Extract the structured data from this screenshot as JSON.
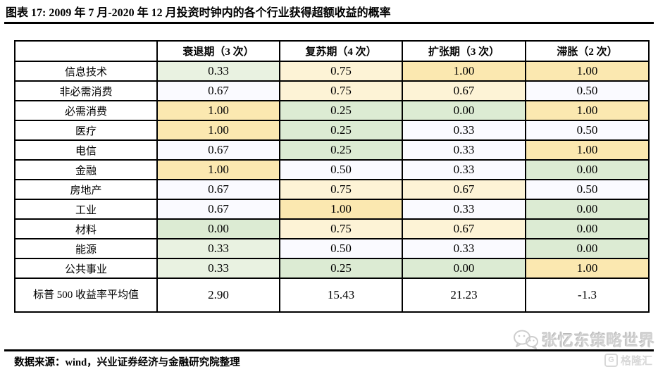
{
  "title": "图表 17:  2009 年 7 月-2020 年 12 月投资时钟内的各个行业获得超额收益的概率",
  "source": "数据来源：wind，兴业证券经济与金融研究院整理",
  "watermark": {
    "text": "张忆东策略世界",
    "logo_text": "格隆汇",
    "logo_letter": "G"
  },
  "palette": {
    "green": "#DCEBD3",
    "green_light": "#E9F2E1",
    "neutral": "#FAFAFF",
    "cream": "#FDF3D6",
    "orange": "#FBE8B0",
    "white": "#FFFFFF",
    "border": "#000000",
    "watermark_gray": "#D2D2D2"
  },
  "table": {
    "corner_label": "",
    "columns": [
      "衰退期（3 次）",
      "复苏期（4 次）",
      "扩张期（3 次）",
      "滞胀（2 次）"
    ],
    "rows": [
      {
        "label": "信息技术",
        "values": [
          "0.33",
          "0.75",
          "1.00",
          "1.00"
        ],
        "colors": [
          "green_light",
          "cream",
          "orange",
          "orange"
        ]
      },
      {
        "label": "非必需消费",
        "values": [
          "0.67",
          "0.75",
          "0.67",
          "0.50"
        ],
        "colors": [
          "neutral",
          "cream",
          "cream",
          "neutral"
        ]
      },
      {
        "label": "必需消费",
        "values": [
          "1.00",
          "0.25",
          "0.00",
          "1.00"
        ],
        "colors": [
          "orange",
          "green",
          "green",
          "orange"
        ]
      },
      {
        "label": "医疗",
        "values": [
          "1.00",
          "0.25",
          "0.33",
          "0.50"
        ],
        "colors": [
          "orange",
          "green",
          "neutral",
          "neutral"
        ]
      },
      {
        "label": "电信",
        "values": [
          "0.67",
          "0.25",
          "0.33",
          "1.00"
        ],
        "colors": [
          "neutral",
          "green",
          "neutral",
          "orange"
        ]
      },
      {
        "label": "金融",
        "values": [
          "1.00",
          "0.50",
          "0.33",
          "0.00"
        ],
        "colors": [
          "orange",
          "neutral",
          "neutral",
          "green"
        ]
      },
      {
        "label": "房地产",
        "values": [
          "0.67",
          "0.75",
          "0.67",
          "0.50"
        ],
        "colors": [
          "neutral",
          "cream",
          "cream",
          "neutral"
        ]
      },
      {
        "label": "工业",
        "values": [
          "0.67",
          "1.00",
          "0.33",
          "0.00"
        ],
        "colors": [
          "neutral",
          "orange",
          "neutral",
          "green"
        ]
      },
      {
        "label": "材料",
        "values": [
          "0.00",
          "0.75",
          "0.67",
          "0.00"
        ],
        "colors": [
          "green",
          "cream",
          "cream",
          "green"
        ]
      },
      {
        "label": "能源",
        "values": [
          "0.33",
          "0.50",
          "0.33",
          "0.00"
        ],
        "colors": [
          "green_light",
          "neutral",
          "neutral",
          "green"
        ]
      },
      {
        "label": "公共事业",
        "values": [
          "0.33",
          "0.25",
          "0.00",
          "1.00"
        ],
        "colors": [
          "green_light",
          "green",
          "green",
          "orange"
        ]
      },
      {
        "label": "标普 500 收益率平均值",
        "values": [
          "2.90",
          "15.43",
          "21.23",
          "-1.3"
        ],
        "colors": [
          "white",
          "white",
          "white",
          "white"
        ],
        "summary": true
      }
    ]
  }
}
